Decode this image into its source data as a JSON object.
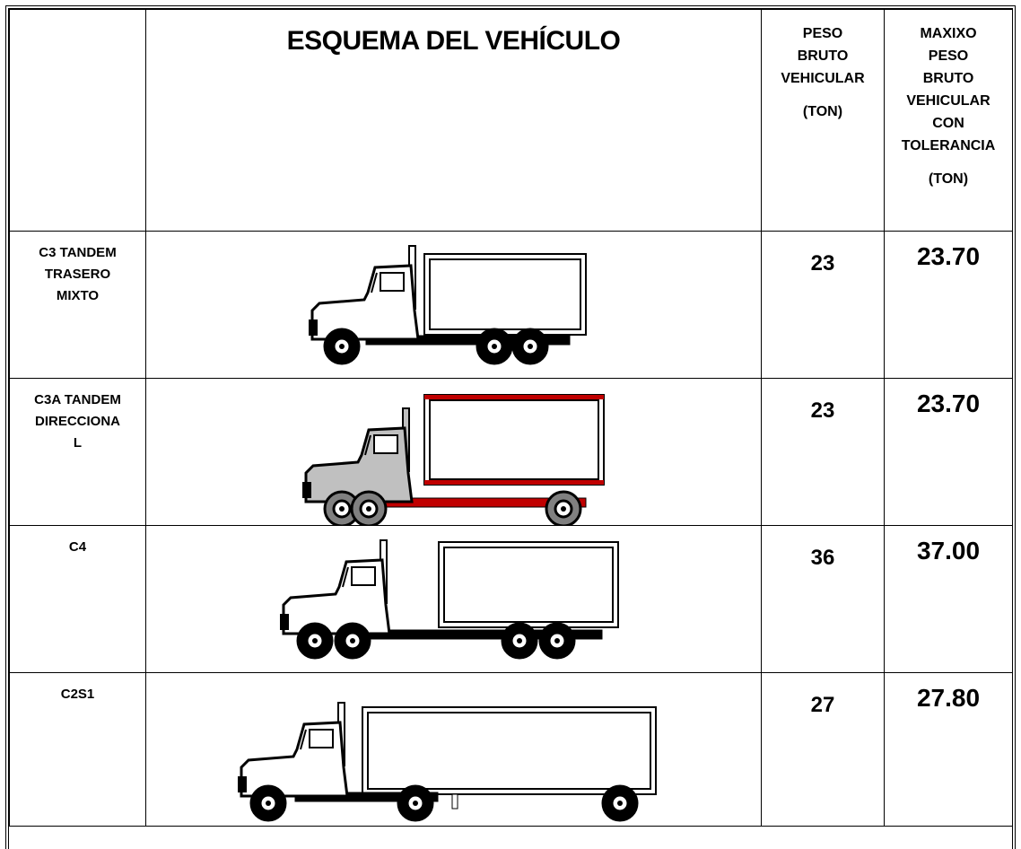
{
  "table": {
    "header": {
      "scheme": "ESQUEMA DEL VEHÍCULO",
      "gross_weight": {
        "lines": [
          "PESO",
          "BRUTO",
          "VEHICULAR"
        ],
        "unit": "(TON)"
      },
      "max_weight": {
        "lines": [
          "MAXIXO",
          "PESO",
          "BRUTO",
          "VEHICULAR",
          "CON",
          "TOLERANCIA"
        ],
        "unit": "(TON)"
      }
    },
    "rows": [
      {
        "label": [
          "C3 TANDEM",
          "TRASERO",
          "MIXTO"
        ],
        "gross": "23",
        "max": "23.70"
      },
      {
        "label": [
          "C3A TANDEM",
          "DIRECCIONA",
          "L"
        ],
        "gross": "23",
        "max": "23.70"
      },
      {
        "label": [
          "C4"
        ],
        "gross": "36",
        "max": "37.00"
      },
      {
        "label": [
          "C2S1"
        ],
        "gross": "27",
        "max": "27.80"
      }
    ]
  }
}
